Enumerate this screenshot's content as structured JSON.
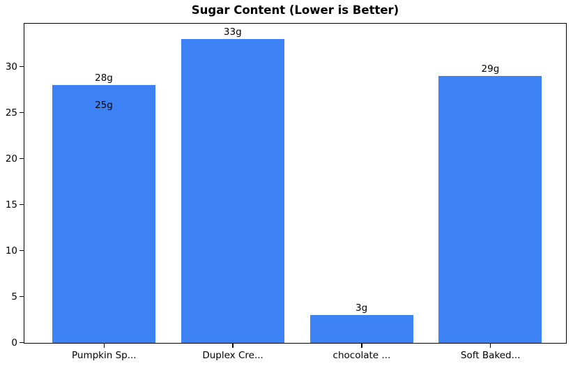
{
  "chart_data": {
    "type": "bar",
    "title": "Sugar Content (Lower is Better)",
    "categories": [
      "Pumpkin Sp...",
      "Duplex Cre...",
      "chocolate ...",
      "Soft Baked..."
    ],
    "bars": [
      {
        "category_index": 0,
        "value": 28,
        "label": "28g"
      },
      {
        "category_index": 0,
        "value": 25,
        "label": "25g"
      },
      {
        "category_index": 1,
        "value": 33,
        "label": "33g"
      },
      {
        "category_index": 2,
        "value": 3,
        "label": "3g"
      },
      {
        "category_index": 3,
        "value": 29,
        "label": "29g"
      }
    ],
    "bar_color": "#3d82f4",
    "text_color": "#000000",
    "background_color": "#ffffff",
    "xlabel": "",
    "ylabel": "",
    "ylim": [
      0,
      34.65
    ],
    "yticks": [
      0,
      5,
      10,
      15,
      20,
      25,
      30
    ],
    "grid": false,
    "legend": null
  }
}
